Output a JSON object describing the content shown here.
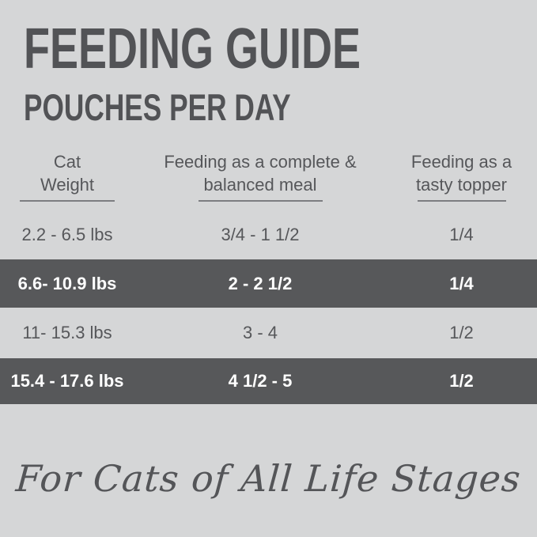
{
  "title": "FEEDING GUIDE",
  "subtitle": "POUCHES PER DAY",
  "table": {
    "columns": [
      {
        "line1": "Cat",
        "line2": "Weight"
      },
      {
        "line1": "Feeding as a complete &",
        "line2": "balanced meal"
      },
      {
        "line1": "Feeding as a",
        "line2": "tasty topper"
      }
    ],
    "rows": [
      {
        "weight": "2.2 - 6.5 lbs",
        "meal": "3/4 - 1 1/2",
        "topper": "1/4",
        "highlighted": false
      },
      {
        "weight": "6.6- 10.9 lbs",
        "meal": "2 - 2 1/2",
        "topper": "1/4",
        "highlighted": true
      },
      {
        "weight": "11- 15.3 lbs",
        "meal": "3 - 4",
        "topper": "1/2",
        "highlighted": false
      },
      {
        "weight": "15.4 - 17.6 lbs",
        "meal": "4 1/2 - 5",
        "topper": "1/2",
        "highlighted": true
      }
    ]
  },
  "footer": {
    "tagline": "For Cats of All Life Stages"
  },
  "colors": {
    "background": "#d5d6d7",
    "band_dark": "#57585a",
    "text_dark": "#56575a",
    "text_light": "#ffffff",
    "underline": "#7d7e81"
  },
  "chart_data": {
    "type": "table",
    "title": "FEEDING GUIDE",
    "subtitle": "POUCHES PER DAY",
    "columns": [
      "Cat Weight",
      "Feeding as a complete & balanced meal",
      "Feeding as a tasty topper"
    ],
    "rows": [
      [
        "2.2 - 6.5 lbs",
        "3/4 - 1 1/2",
        "1/4"
      ],
      [
        "6.6- 10.9 lbs",
        "2 - 2 1/2",
        "1/4"
      ],
      [
        "11- 15.3 lbs",
        "3 - 4",
        "1/2"
      ],
      [
        "15.4 - 17.6 lbs",
        "4 1/2 - 5",
        "1/2"
      ]
    ],
    "highlighted_rows": [
      1,
      3
    ],
    "footnote": "For Cats of All Life Stages",
    "layout": {
      "grid": false,
      "row_banding": "alternate dark bands on rows 2 and 4"
    }
  }
}
